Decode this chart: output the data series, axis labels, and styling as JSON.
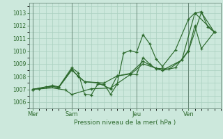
{
  "xlabel": "Pression niveau de la mer( hPa )",
  "bg_color": "#cce8dc",
  "grid_color": "#aad0c0",
  "line_color": "#2d6a2d",
  "ylim": [
    1005.5,
    1013.8
  ],
  "yticks": [
    1006,
    1007,
    1008,
    1009,
    1010,
    1011,
    1012,
    1013
  ],
  "xtick_labels": [
    "Mer",
    "Sam",
    "Jeu",
    "Ven"
  ],
  "xtick_positions": [
    0,
    3,
    8,
    12
  ],
  "vline_positions": [
    0,
    3,
    8,
    12
  ],
  "lines": [
    [
      0.0,
      1007.0,
      0.5,
      1007.05,
      1.5,
      1007.3,
      2.0,
      1007.2,
      3.0,
      1008.7,
      3.5,
      1008.3,
      4.0,
      1006.6,
      4.5,
      1006.55,
      5.0,
      1007.4,
      5.5,
      1007.4,
      6.0,
      1006.6,
      6.5,
      1007.4,
      7.0,
      1009.85,
      7.5,
      1010.05,
      8.0,
      1009.9,
      8.5,
      1011.3,
      9.0,
      1010.6,
      9.5,
      1009.4,
      10.0,
      1008.8,
      11.0,
      1010.1,
      12.0,
      1012.5,
      12.5,
      1013.0,
      13.0,
      1013.1,
      13.5,
      1011.9,
      14.0,
      1011.5
    ],
    [
      0.0,
      1007.0,
      1.5,
      1007.25,
      2.0,
      1007.15,
      3.0,
      1008.6,
      3.5,
      1008.0,
      4.0,
      1007.6,
      5.0,
      1007.5,
      6.0,
      1007.05,
      6.5,
      1008.05,
      7.5,
      1008.2,
      8.0,
      1008.15,
      8.5,
      1009.5,
      9.0,
      1009.0,
      9.5,
      1008.6,
      10.0,
      1008.5,
      11.0,
      1008.7,
      12.0,
      1010.05,
      12.5,
      1012.0,
      13.0,
      1010.2,
      14.0,
      1011.5
    ],
    [
      0.0,
      1007.0,
      2.0,
      1007.15,
      3.0,
      1008.5,
      4.0,
      1007.6,
      5.5,
      1007.5,
      6.5,
      1008.05,
      7.5,
      1008.25,
      8.5,
      1009.2,
      9.5,
      1008.65,
      10.5,
      1008.6,
      11.5,
      1009.3,
      12.0,
      1010.0,
      13.0,
      1013.05,
      14.0,
      1011.5
    ],
    [
      0.0,
      1007.0,
      1.0,
      1007.2,
      2.5,
      1006.95,
      3.0,
      1006.6,
      4.5,
      1007.05,
      6.0,
      1007.1,
      7.5,
      1008.15,
      8.5,
      1009.0,
      10.0,
      1008.5,
      11.5,
      1009.3,
      12.5,
      1013.0,
      14.0,
      1011.5
    ]
  ],
  "xlim": [
    -0.3,
    14.5
  ]
}
